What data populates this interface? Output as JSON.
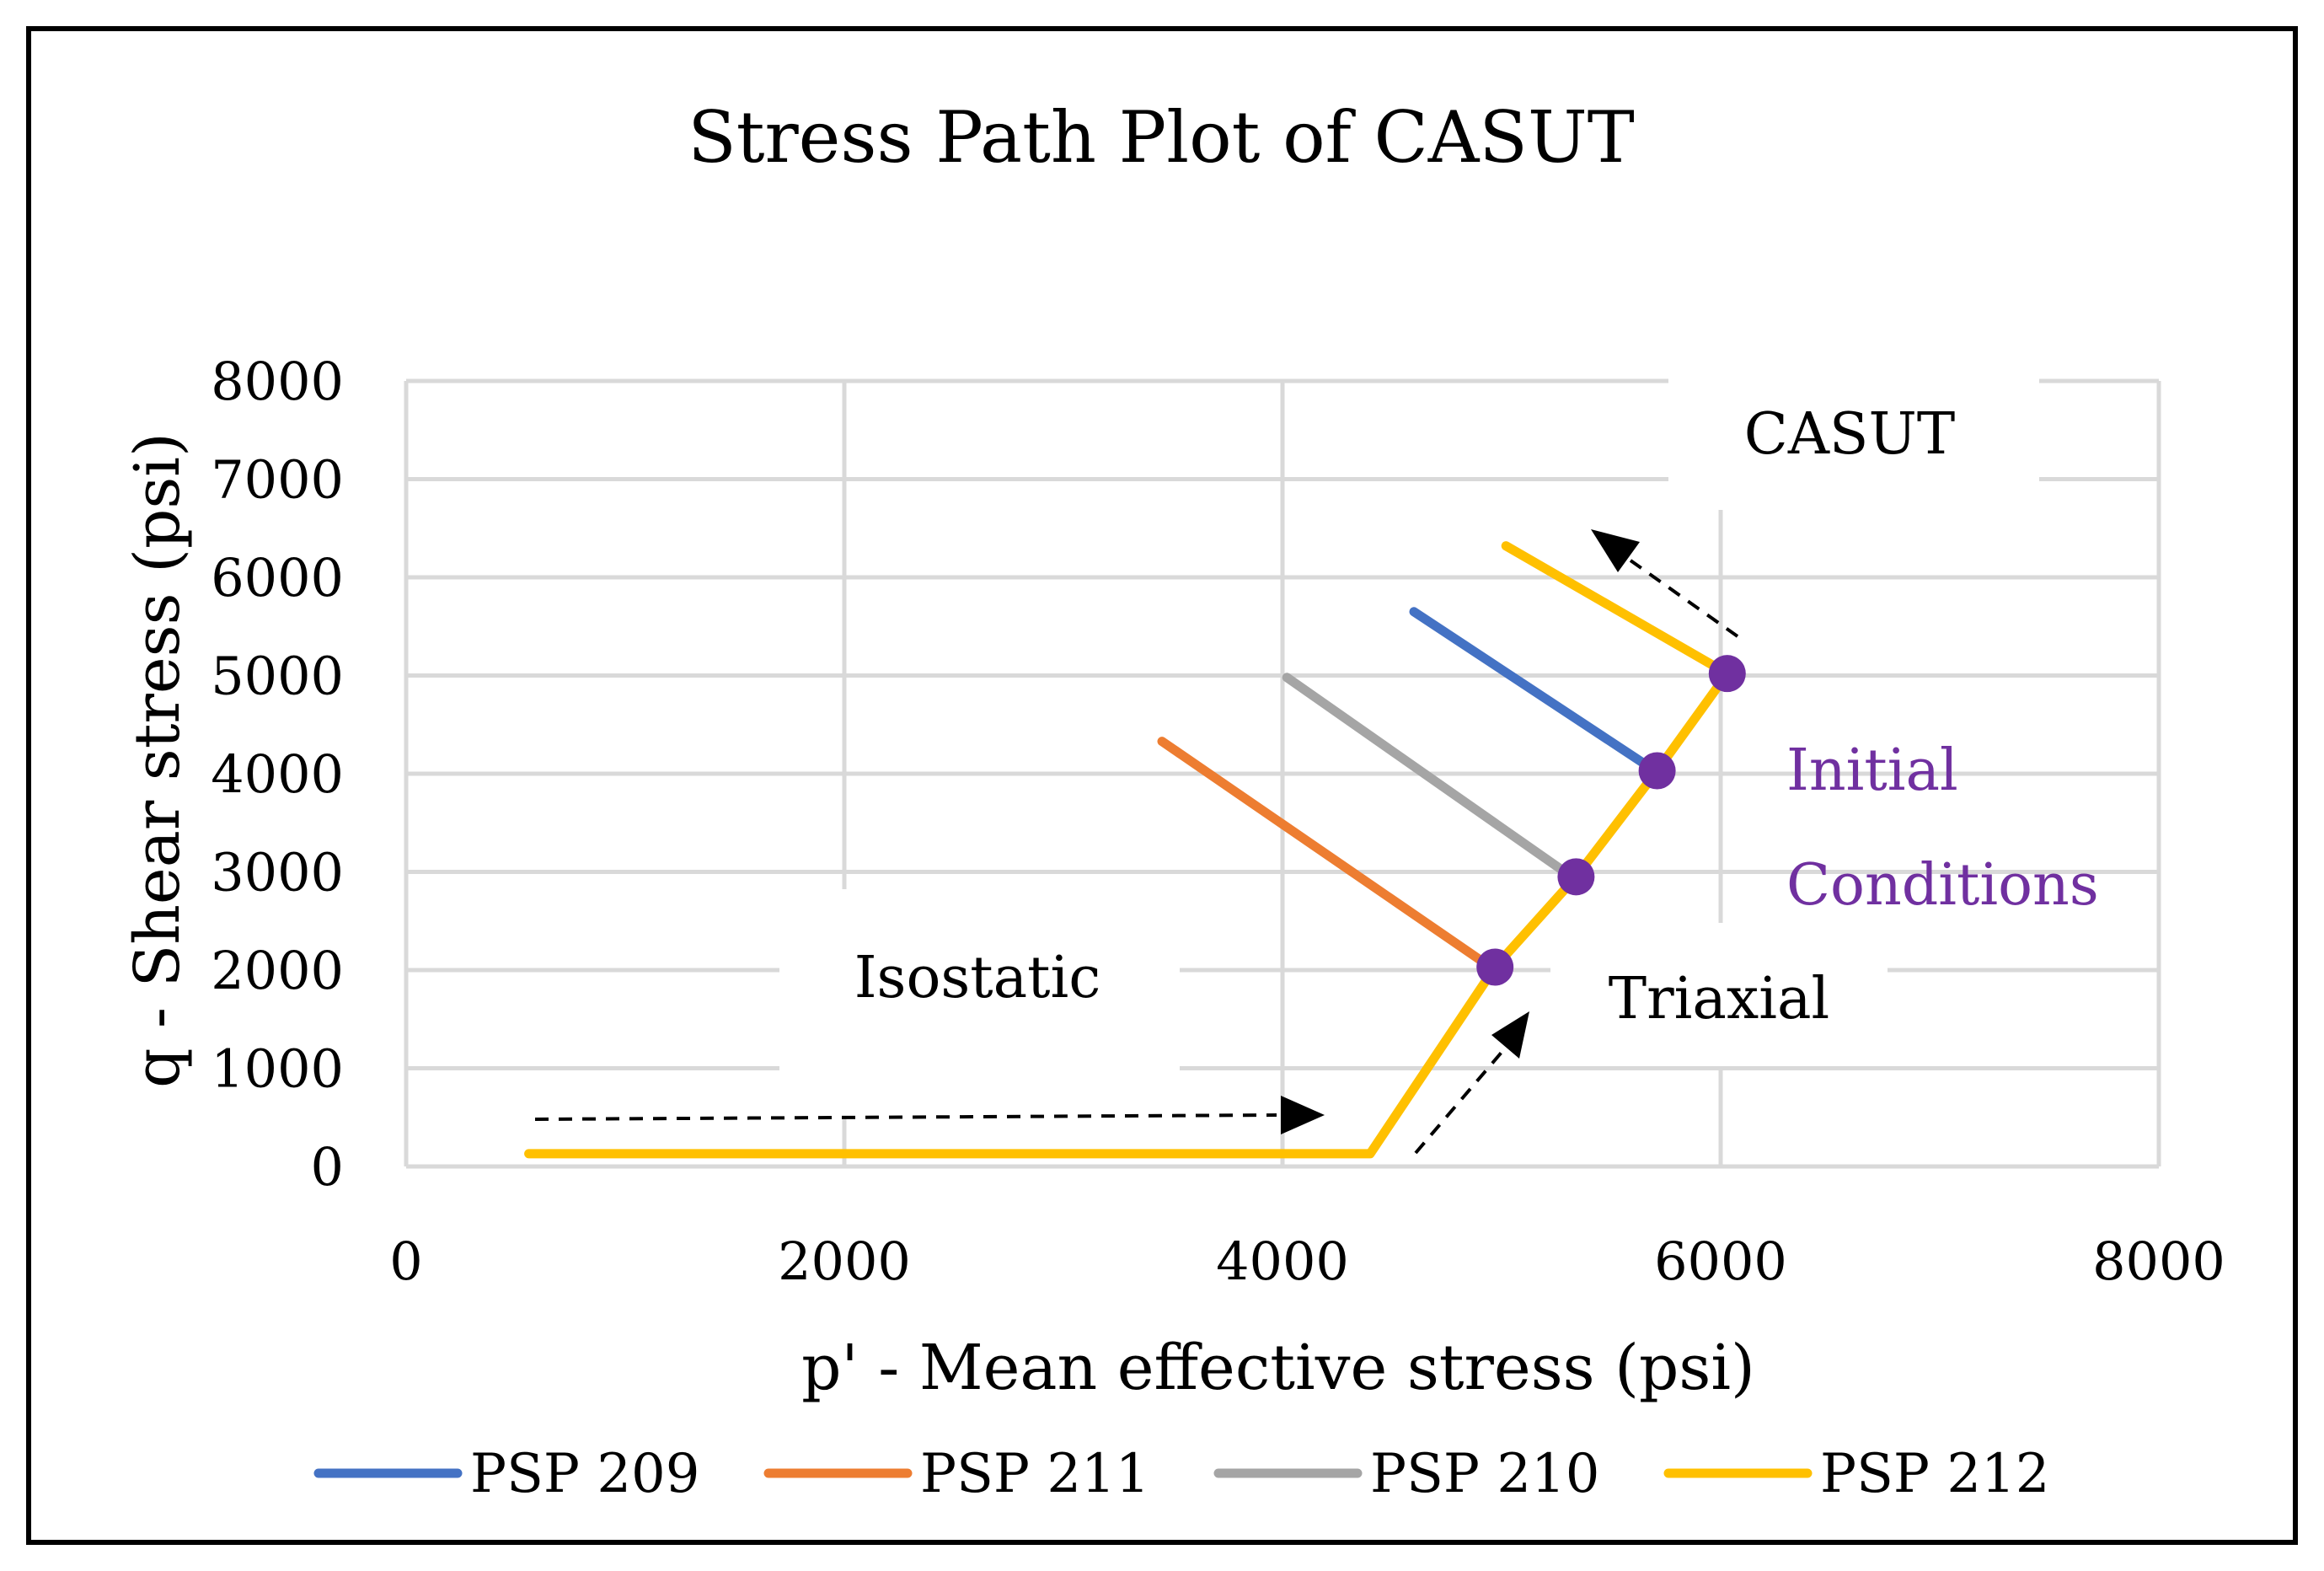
{
  "chart_data": {
    "type": "line",
    "title": "Stress Path Plot of CASUT",
    "xlabel": "p' - Mean effective stress (psi)",
    "ylabel": "q - Shear stress (psi)",
    "xlim": [
      0,
      8000
    ],
    "ylim": [
      0,
      8000
    ],
    "xticks": [
      "0",
      "2000",
      "4000",
      "6000",
      "8000"
    ],
    "yticks": [
      "0",
      "1000",
      "2000",
      "3000",
      "4000",
      "5000",
      "6000",
      "7000",
      "8000"
    ],
    "grid": true,
    "legend_position": "bottom",
    "series": [
      {
        "name": "PSP 209",
        "color": "#4472c4",
        "points": [
          [
            4600,
            5650
          ],
          [
            5700,
            4030
          ]
        ]
      },
      {
        "name": "PSP 211",
        "color": "#ed7d31",
        "points": [
          [
            3450,
            4330
          ],
          [
            4950,
            2030
          ]
        ]
      },
      {
        "name": "PSP 210",
        "color": "#a5a5a5",
        "points": [
          [
            4020,
            4980
          ],
          [
            5320,
            2950
          ]
        ]
      },
      {
        "name": "PSP 212",
        "color": "#ffc000",
        "points": [
          [
            560,
            130
          ],
          [
            4400,
            130
          ],
          [
            4970,
            2030
          ],
          [
            5340,
            2950
          ],
          [
            5710,
            4030
          ],
          [
            6030,
            5020
          ],
          [
            5020,
            6320
          ]
        ]
      }
    ],
    "initial_conditions": {
      "color": "#7030a0",
      "points": [
        [
          4970,
          2030
        ],
        [
          5340,
          2950
        ],
        [
          5710,
          4030
        ],
        [
          6030,
          5020
        ]
      ]
    },
    "annotations": {
      "casut": "CASUT",
      "isostatic": "Isostatic",
      "triaxial": "Triaxial",
      "initial_line1": "Initial",
      "initial_line2": "Conditions"
    }
  }
}
